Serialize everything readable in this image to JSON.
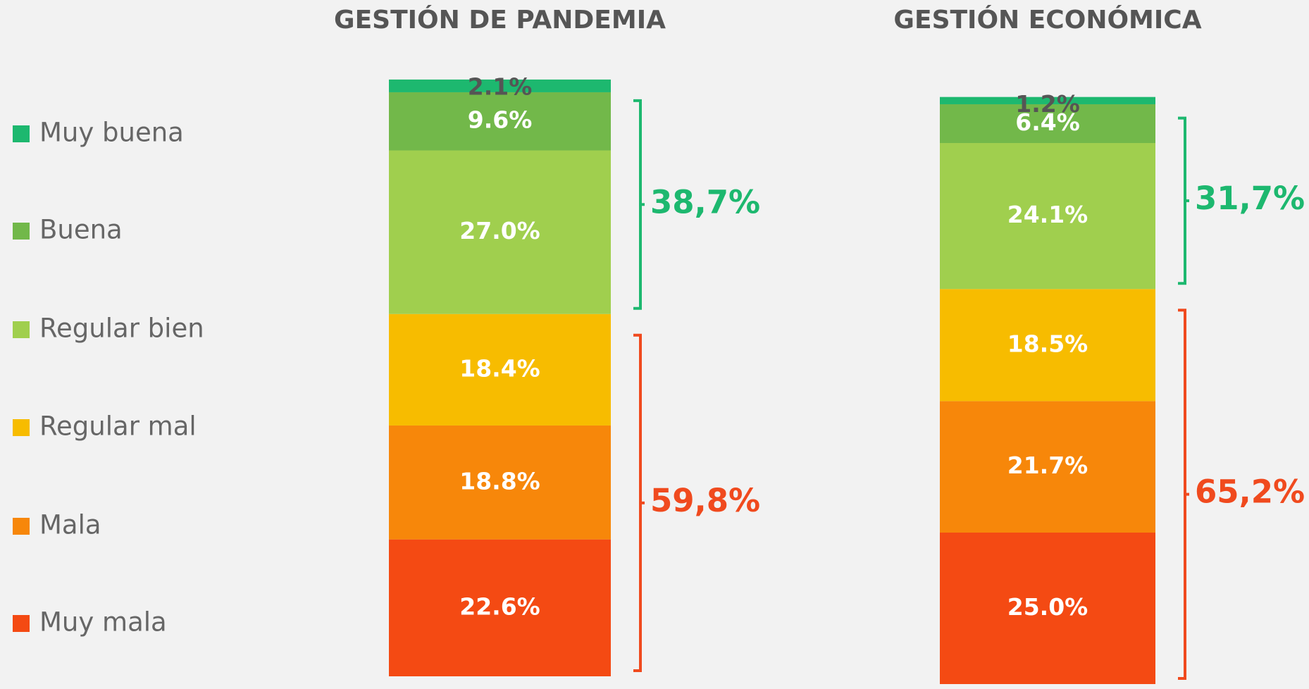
{
  "chart_data": {
    "type": "bar",
    "stacked": true,
    "categories": [
      "GESTIÓN DE PANDEMIA",
      "GESTIÓN ECONÓMICA"
    ],
    "series": [
      {
        "name": "Muy buena",
        "color": "#1db86f",
        "values": [
          2.1,
          1.2
        ],
        "value_labels": [
          "2.1%",
          "1.2%"
        ]
      },
      {
        "name": "Buena",
        "color": "#72b84a",
        "values": [
          9.6,
          6.4
        ],
        "value_labels": [
          "9.6%",
          "6.4%"
        ]
      },
      {
        "name": "Regular bien",
        "color": "#a0cf4e",
        "values": [
          27.0,
          24.1
        ],
        "value_labels": [
          "27.0%",
          "24.1%"
        ]
      },
      {
        "name": "Regular mal",
        "color": "#f7bc00",
        "values": [
          18.4,
          18.5
        ],
        "value_labels": [
          "18.4%",
          "18.5%"
        ]
      },
      {
        "name": "Mala",
        "color": "#f7870a",
        "values": [
          18.8,
          21.7
        ],
        "value_labels": [
          "18.8%",
          "21.7%"
        ]
      },
      {
        "name": "Muy mala",
        "color": "#f44a13",
        "values": [
          22.6,
          25.0
        ],
        "value_labels": [
          "22.6%",
          "25.0%"
        ]
      }
    ],
    "annotations": [
      {
        "labels": [
          "38,7%",
          "31,7%"
        ],
        "color": "#1db86f"
      },
      {
        "labels": [
          "59,8%",
          "65,2%"
        ],
        "color": "#f04a1e"
      }
    ],
    "legend": "left"
  }
}
